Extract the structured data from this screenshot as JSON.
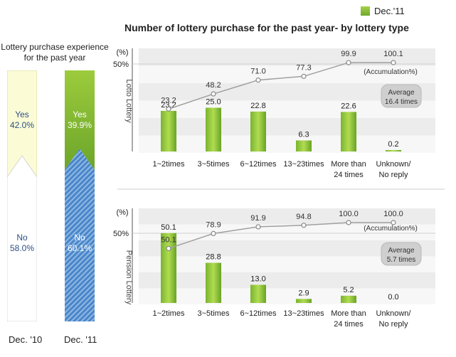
{
  "legend": {
    "label": "Dec.'11",
    "color": "#8dc03a"
  },
  "main_title": "Number of lottery purchase for the past year- by lottery type",
  "left_panel": {
    "title_line1": "Lottery purchase experience",
    "title_line2": "for the past year",
    "bars": [
      {
        "year": "Dec. '10",
        "yes_label": "Yes",
        "yes_value": "42.0%",
        "no_label": "No",
        "no_value": "58.0%",
        "yes": 42.0,
        "no": 58.0
      },
      {
        "year": "Dec. '11",
        "yes_label": "Yes",
        "yes_value": "39.9%",
        "no_label": "No",
        "no_value": "60.1%",
        "yes": 39.9,
        "no": 60.1
      }
    ]
  },
  "chart_data": [
    {
      "type": "bar",
      "name": "Lotto Lottery",
      "categories": [
        "1~2times",
        "3~5times",
        "6~12times",
        "13~23times",
        "More than 24 times",
        "Unknown/ No reply"
      ],
      "category_lines": [
        [
          "1~2times"
        ],
        [
          "3~5times"
        ],
        [
          "6~12times"
        ],
        [
          "13~23times"
        ],
        [
          "More than",
          "24 times"
        ],
        [
          "Unknown/",
          "No reply"
        ]
      ],
      "values": [
        23.2,
        25.0,
        22.8,
        6.3,
        22.6,
        0.2
      ],
      "accumulation": [
        23.2,
        48.2,
        71.0,
        77.3,
        99.9,
        100.1
      ],
      "ylabel": "(%)",
      "ytick": "50%",
      "accumulation_label": "(Accumulation%)",
      "average_line1": "Average",
      "average_line2": "16.4 times"
    },
    {
      "type": "bar",
      "name": "Pension Lottery",
      "categories": [
        "1~2times",
        "3~5times",
        "6~12times",
        "13~23times",
        "More than 24 times",
        "Unknown/ No reply"
      ],
      "category_lines": [
        [
          "1~2times"
        ],
        [
          "3~5times"
        ],
        [
          "6~12times"
        ],
        [
          "13~23times"
        ],
        [
          "More than",
          "24 times"
        ],
        [
          "Unknown/",
          "No reply"
        ]
      ],
      "values": [
        50.1,
        28.8,
        13.0,
        2.9,
        5.2,
        0.0
      ],
      "accumulation": [
        50.1,
        78.9,
        91.9,
        94.8,
        100.0,
        100.0
      ],
      "ylabel": "(%)",
      "ytick": "50%",
      "accumulation_label": "(Accumulation%)",
      "average_line1": "Average",
      "average_line2": "5.7 times"
    }
  ]
}
